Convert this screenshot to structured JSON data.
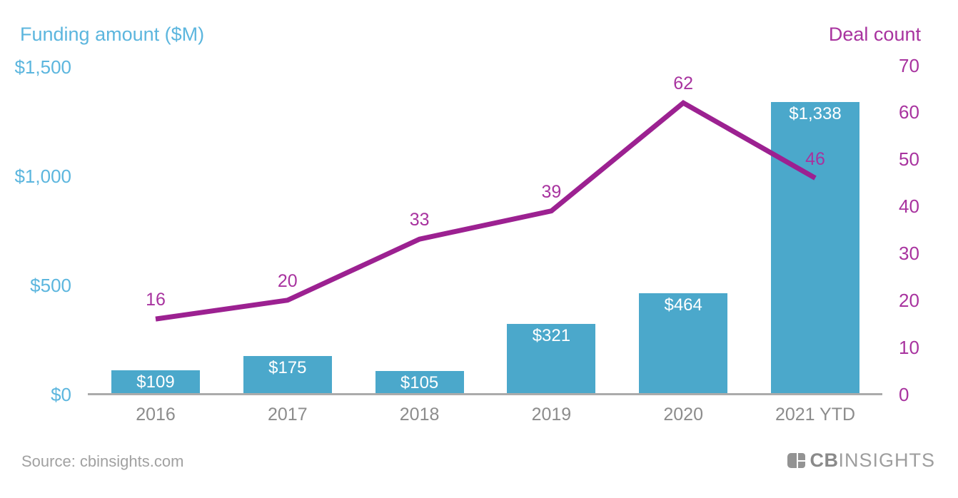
{
  "colors": {
    "bar": "#4BA8CB",
    "left_axis_text": "#5CB6DE",
    "line": "#9C2191",
    "magenta_text": "#A8339F",
    "axis_gray": "#8C8C8C",
    "source_gray": "#A1A1A1",
    "logo_gray": "#939393",
    "baseline": "#ABABAB",
    "bar_label": "#FFFFFF"
  },
  "chart_data": {
    "type": "combo-bar-line",
    "categories": [
      "2016",
      "2017",
      "2018",
      "2019",
      "2020",
      "2021 YTD"
    ],
    "series": [
      {
        "name": "Funding amount ($M)",
        "type": "bar",
        "axis": "left",
        "values": [
          109,
          175,
          105,
          321,
          464,
          1338
        ],
        "labels": [
          "$109",
          "$175",
          "$105",
          "$321",
          "$464",
          "$1,338"
        ]
      },
      {
        "name": "Deal count",
        "type": "line",
        "axis": "right",
        "values": [
          16,
          20,
          33,
          39,
          62,
          46
        ],
        "labels": [
          "16",
          "20",
          "33",
          "39",
          "62",
          "46"
        ]
      }
    ],
    "left_axis": {
      "title": "Funding amount ($M)",
      "ticks": [
        {
          "label": "$0",
          "value": 0
        },
        {
          "label": "$500",
          "value": 500
        },
        {
          "label": "$1,000",
          "value": 1000
        },
        {
          "label": "$1,500",
          "value": 1500
        }
      ],
      "min": 0,
      "max": 1500
    },
    "right_axis": {
      "title": "Deal count",
      "ticks": [
        {
          "label": "0",
          "value": 0
        },
        {
          "label": "10",
          "value": 10
        },
        {
          "label": "20",
          "value": 20
        },
        {
          "label": "30",
          "value": 30
        },
        {
          "label": "40",
          "value": 40
        },
        {
          "label": "50",
          "value": 50
        },
        {
          "label": "60",
          "value": 60
        },
        {
          "label": "70",
          "value": 70
        }
      ],
      "min": 0,
      "max": 70
    },
    "grid": false,
    "legend_position": "axis-titles"
  },
  "footer": {
    "source": "Source: cbinsights.com",
    "logo_cb": "CB",
    "logo_insights": "INSIGHTS"
  }
}
